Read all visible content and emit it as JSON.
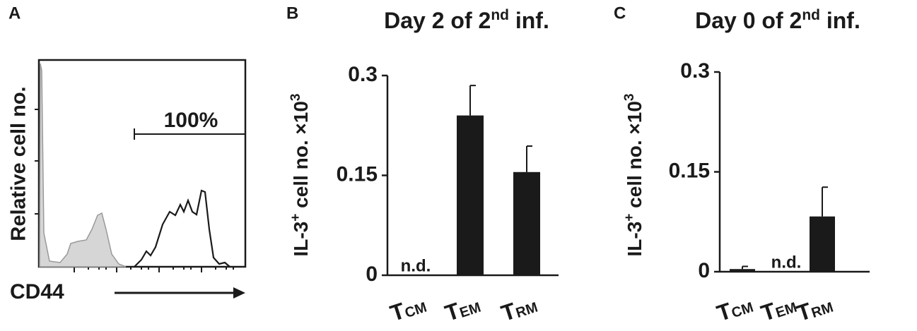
{
  "chart_data": [
    {
      "type": "flow-histogram",
      "panel_label": "A",
      "ylabel": "Relative cell no.",
      "xlabel": "CD44",
      "gate_label": "100%"
    },
    {
      "type": "bar",
      "panel_label": "B",
      "title": [
        "Day 2 of 2",
        "nd",
        " inf."
      ],
      "ylabel": [
        "IL-3",
        "+",
        " cell no. ×10",
        "3"
      ],
      "categories": [
        {
          "text": "T",
          "subscript": "CM"
        },
        {
          "text": "T",
          "subscript": "EM"
        },
        {
          "text": "T",
          "subscript": "RM"
        }
      ],
      "values": [
        null,
        0.24,
        0.155
      ],
      "errors": [
        null,
        0.045,
        0.039
      ],
      "value_labels": [
        "n.d.",
        null,
        null
      ],
      "color": "#1a1a1a",
      "ylim": [
        0,
        0.3
      ],
      "yticks": [
        0,
        0.15,
        0.3
      ]
    },
    {
      "type": "bar",
      "panel_label": "C",
      "title": [
        "Day 0 of 2",
        "nd",
        " inf."
      ],
      "ylabel": [
        "IL-3",
        "+",
        " cell no. ×10",
        "3"
      ],
      "categories": [
        {
          "text": "T",
          "subscript": "CM"
        },
        {
          "text": "T",
          "subscript": "EM"
        },
        {
          "text": "T",
          "subscript": "RM"
        }
      ],
      "values": [
        0.004,
        null,
        0.083
      ],
      "errors": [
        0.004,
        null,
        0.044
      ],
      "value_labels": [
        null,
        "n.d.",
        null
      ],
      "color": "#1a1a1a",
      "ylim": [
        0,
        0.3
      ],
      "yticks": [
        0,
        0.15,
        0.3
      ]
    }
  ]
}
